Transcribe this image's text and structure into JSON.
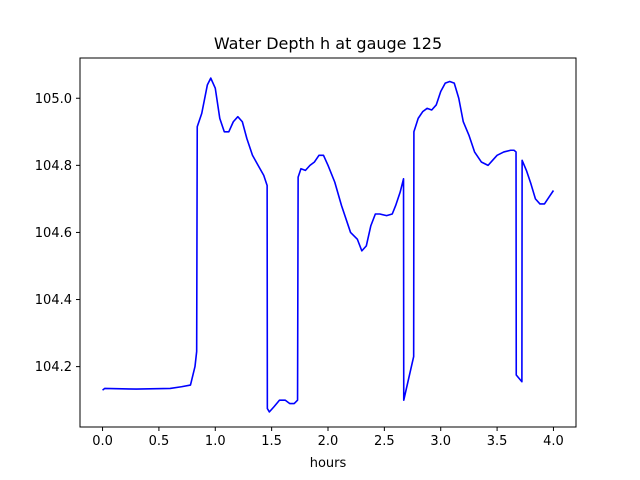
{
  "chart_data": {
    "type": "line",
    "title": "Water Depth h at gauge 125",
    "xlabel": "hours",
    "ylabel": "",
    "xlim": [
      -0.2,
      4.2
    ],
    "ylim": [
      104.02,
      105.12
    ],
    "x_ticks": [
      0.0,
      0.5,
      1.0,
      1.5,
      2.0,
      2.5,
      3.0,
      3.5,
      4.0
    ],
    "x_tick_labels": [
      "0.0",
      "0.5",
      "1.0",
      "1.5",
      "2.0",
      "2.5",
      "3.0",
      "3.5",
      "4.0"
    ],
    "y_ticks": [
      104.2,
      104.4,
      104.6,
      104.8,
      105.0
    ],
    "y_tick_labels": [
      "104.2",
      "104.4",
      "104.6",
      "104.8",
      "105.0"
    ],
    "grid": false,
    "series": [
      {
        "color": "#0000ff",
        "x": [
          0.0,
          0.02,
          0.3,
          0.6,
          0.7,
          0.78,
          0.82,
          0.835,
          0.84,
          0.88,
          0.93,
          0.96,
          1.0,
          1.04,
          1.08,
          1.12,
          1.16,
          1.2,
          1.24,
          1.28,
          1.33,
          1.38,
          1.43,
          1.46,
          1.462,
          1.48,
          1.52,
          1.57,
          1.62,
          1.66,
          1.7,
          1.73,
          1.735,
          1.76,
          1.8,
          1.84,
          1.88,
          1.92,
          1.96,
          2.0,
          2.06,
          2.12,
          2.2,
          2.26,
          2.3,
          2.34,
          2.38,
          2.42,
          2.46,
          2.52,
          2.57,
          2.6,
          2.64,
          2.67,
          2.672,
          2.76,
          2.762,
          2.8,
          2.84,
          2.88,
          2.92,
          2.96,
          3.0,
          3.04,
          3.08,
          3.12,
          3.16,
          3.2,
          3.25,
          3.3,
          3.36,
          3.42,
          3.46,
          3.5,
          3.56,
          3.62,
          3.65,
          3.668,
          3.67,
          3.72,
          3.722,
          3.76,
          3.8,
          3.84,
          3.88,
          3.92,
          3.96,
          4.0
        ],
        "y": [
          104.13,
          104.135,
          104.133,
          104.135,
          104.14,
          104.145,
          104.2,
          104.245,
          104.915,
          104.955,
          105.04,
          105.06,
          105.03,
          104.94,
          104.9,
          104.9,
          104.93,
          104.945,
          104.93,
          104.88,
          104.83,
          104.8,
          104.77,
          104.74,
          104.075,
          104.065,
          104.08,
          104.1,
          104.1,
          104.09,
          104.09,
          104.1,
          104.765,
          104.79,
          104.785,
          104.8,
          104.81,
          104.83,
          104.83,
          104.8,
          104.75,
          104.68,
          104.6,
          104.58,
          104.545,
          104.56,
          104.62,
          104.655,
          104.655,
          104.65,
          104.655,
          104.68,
          104.72,
          104.76,
          104.1,
          104.23,
          104.9,
          104.94,
          104.96,
          104.97,
          104.965,
          104.98,
          105.02,
          105.045,
          105.05,
          105.045,
          105.0,
          104.93,
          104.89,
          104.84,
          104.81,
          104.8,
          104.815,
          104.83,
          104.84,
          104.845,
          104.845,
          104.84,
          104.175,
          104.155,
          104.815,
          104.785,
          104.745,
          104.7,
          104.685,
          104.685,
          104.705,
          104.725
        ]
      }
    ]
  }
}
